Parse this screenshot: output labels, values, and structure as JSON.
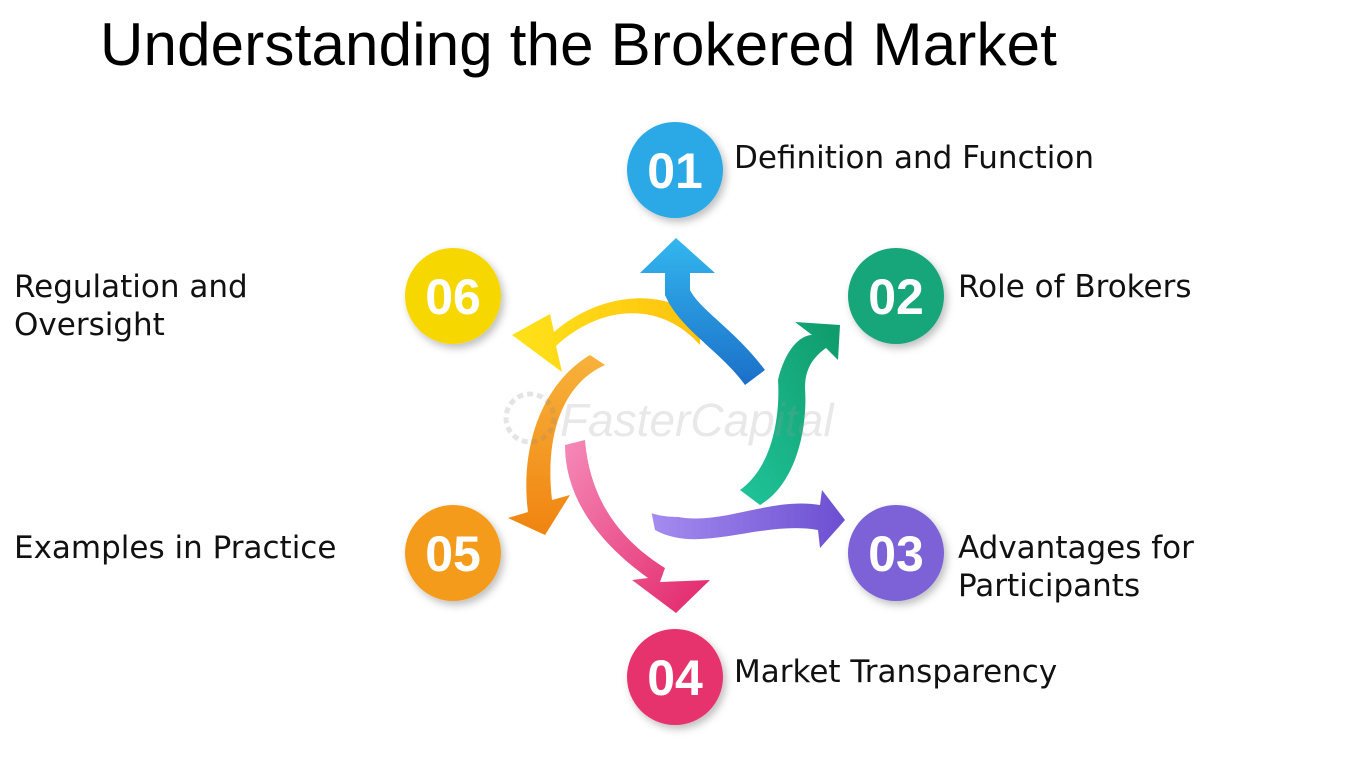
{
  "title": "Understanding the Brokered Market",
  "watermark": "FasterCapital",
  "steps": [
    {
      "number": "01",
      "label": "Definition and Function",
      "color": "#29a9e6"
    },
    {
      "number": "02",
      "label": "Role of Brokers",
      "color": "#17a67a"
    },
    {
      "number": "03",
      "label": "Advantages for Participants",
      "color": "#7b62d6"
    },
    {
      "number": "04",
      "label": "Market Transparency",
      "color": "#e6336d"
    },
    {
      "number": "05",
      "label": "Examples in Practice",
      "color": "#f59b1a"
    },
    {
      "number": "06",
      "label": "Regulation and Oversight",
      "color": "#f6d800"
    }
  ]
}
